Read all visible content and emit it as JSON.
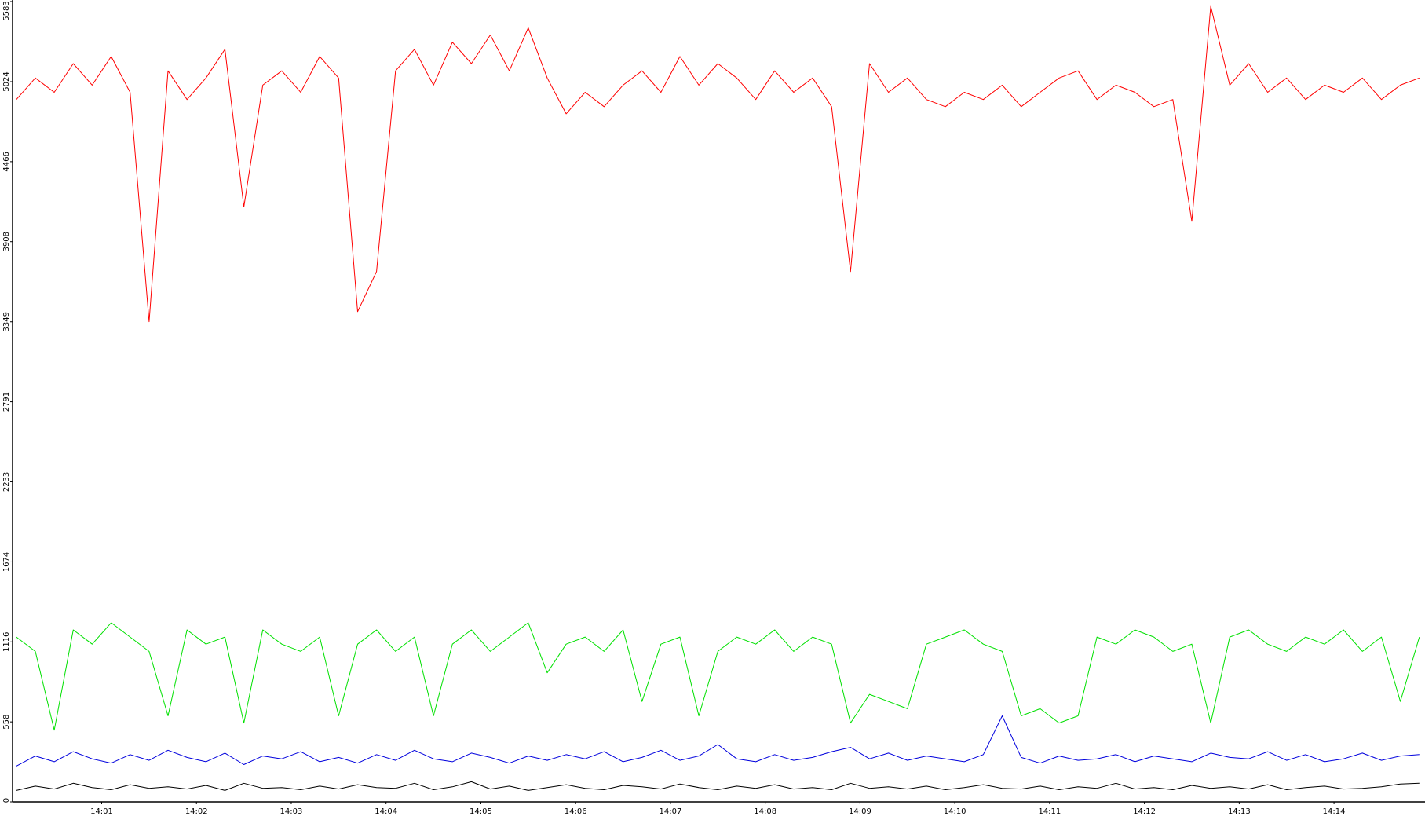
{
  "chart_data": {
    "type": "line",
    "x": [
      0.1,
      0.3,
      0.5,
      0.7,
      0.9,
      1.1,
      1.3,
      1.5,
      1.7,
      1.9,
      2.1,
      2.3,
      2.5,
      2.7,
      2.9,
      3.1,
      3.3,
      3.5,
      3.7,
      3.9,
      4.1,
      4.3,
      4.5,
      4.7,
      4.9,
      5.1,
      5.3,
      5.5,
      5.7,
      5.9,
      6.1,
      6.3,
      6.5,
      6.7,
      6.9,
      7.1,
      7.3,
      7.5,
      7.7,
      7.9,
      8.1,
      8.3,
      8.5,
      8.7,
      8.9,
      9.1,
      9.3,
      9.5,
      9.7,
      9.9,
      10.1,
      10.3,
      10.5,
      10.7,
      10.9,
      11.1,
      11.3,
      11.5,
      11.7,
      11.9,
      12.1,
      12.3,
      12.5,
      12.7,
      12.9,
      13.1,
      13.3,
      13.5,
      13.7,
      13.9,
      14.1,
      14.3,
      14.5,
      14.7,
      14.9
    ],
    "series": [
      {
        "color": "#ff0000",
        "values": [
          4900,
          5050,
          4950,
          5150,
          5000,
          5200,
          4950,
          3350,
          5100,
          4900,
          5050,
          5250,
          4150,
          5000,
          5100,
          4950,
          5200,
          5050,
          3420,
          3700,
          5100,
          5250,
          5000,
          5300,
          5150,
          5350,
          5100,
          5400,
          5050,
          4800,
          4950,
          4850,
          5000,
          5100,
          4950,
          5200,
          5000,
          5150,
          5050,
          4900,
          5100,
          4950,
          5050,
          4850,
          3700,
          5150,
          4950,
          5050,
          4900,
          4850,
          4950,
          4900,
          5000,
          4850,
          4950,
          5050,
          5100,
          4900,
          5000,
          4950,
          4850,
          4900,
          4050,
          5550,
          5000,
          5150,
          4950,
          5050,
          4900,
          5000,
          4950,
          5050,
          4900,
          5000,
          5050
        ]
      },
      {
        "color": "#00e000",
        "values": [
          1150,
          1050,
          500,
          1200,
          1100,
          1250,
          1150,
          1050,
          600,
          1200,
          1100,
          1150,
          550,
          1200,
          1100,
          1050,
          1150,
          600,
          1100,
          1200,
          1050,
          1150,
          600,
          1100,
          1200,
          1050,
          1150,
          1250,
          900,
          1100,
          1150,
          1050,
          1200,
          700,
          1100,
          1150,
          600,
          1050,
          1150,
          1100,
          1200,
          1050,
          1150,
          1100,
          550,
          750,
          700,
          650,
          1100,
          1150,
          1200,
          1100,
          1050,
          600,
          650,
          550,
          600,
          1150,
          1100,
          1200,
          1150,
          1050,
          1100,
          550,
          1150,
          1200,
          1100,
          1050,
          1150,
          1100,
          1200,
          1050,
          1150,
          700,
          1150
        ]
      },
      {
        "color": "#0000dd",
        "values": [
          250,
          320,
          280,
          350,
          300,
          270,
          330,
          290,
          360,
          310,
          280,
          340,
          260,
          320,
          300,
          350,
          280,
          310,
          270,
          330,
          290,
          360,
          300,
          280,
          340,
          310,
          270,
          320,
          290,
          330,
          300,
          350,
          280,
          310,
          360,
          290,
          320,
          400,
          300,
          280,
          330,
          290,
          310,
          350,
          380,
          300,
          340,
          290,
          320,
          300,
          280,
          330,
          600,
          310,
          270,
          320,
          290,
          300,
          330,
          280,
          320,
          300,
          280,
          340,
          310,
          300,
          350,
          290,
          330,
          280,
          300,
          340,
          290,
          320,
          330
        ]
      },
      {
        "color": "#000000",
        "values": [
          80,
          110,
          90,
          130,
          100,
          85,
          120,
          95,
          105,
          90,
          115,
          80,
          130,
          95,
          100,
          85,
          110,
          90,
          120,
          100,
          95,
          130,
          85,
          105,
          140,
          90,
          110,
          80,
          100,
          120,
          95,
          85,
          115,
          105,
          90,
          125,
          100,
          85,
          110,
          95,
          120,
          90,
          100,
          85,
          130,
          95,
          105,
          90,
          110,
          85,
          100,
          120,
          95,
          90,
          110,
          85,
          105,
          95,
          130,
          90,
          100,
          85,
          115,
          95,
          105,
          90,
          120,
          85,
          100,
          110,
          90,
          95,
          105,
          125,
          130
        ]
      }
    ],
    "xlim": [
      0.06,
      14.96
    ],
    "xticks": [
      {
        "value": 1,
        "label": "14:01"
      },
      {
        "value": 2,
        "label": "14:02"
      },
      {
        "value": 3,
        "label": "14:03"
      },
      {
        "value": 4,
        "label": "14:04"
      },
      {
        "value": 5,
        "label": "14:05"
      },
      {
        "value": 6,
        "label": "14:06"
      },
      {
        "value": 7,
        "label": "14:07"
      },
      {
        "value": 8,
        "label": "14:08"
      },
      {
        "value": 9,
        "label": "14:09"
      },
      {
        "value": 10,
        "label": "14:10"
      },
      {
        "value": 11,
        "label": "14:11"
      },
      {
        "value": 12,
        "label": "14:12"
      },
      {
        "value": 13,
        "label": "14:13"
      },
      {
        "value": 14,
        "label": "14:14"
      }
    ],
    "ylim": [
      0,
      5583
    ],
    "yticks": [
      0,
      558,
      1116,
      1674,
      2233,
      2791,
      3349,
      3908,
      4466,
      5024,
      5583
    ]
  }
}
